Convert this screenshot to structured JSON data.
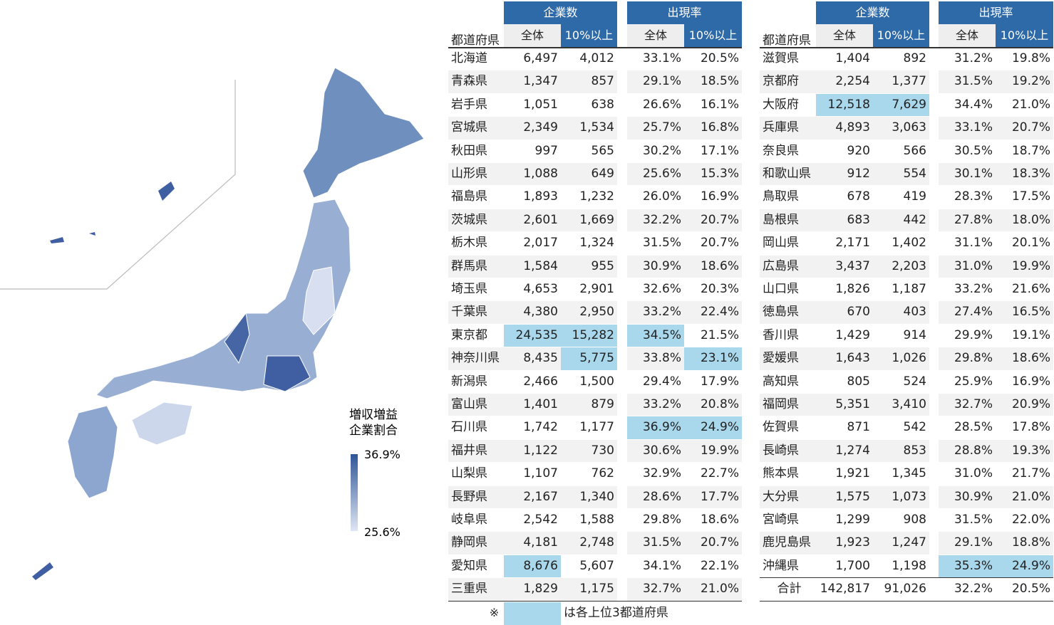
{
  "legend": {
    "title_lines": [
      "増収増益",
      "企業割合"
    ],
    "max": "36.9%",
    "min": "25.6%"
  },
  "tables": [
    {
      "prefecture_header": "都道府県",
      "groups": [
        {
          "label": "企業数",
          "columns": [
            "全体",
            "10%以上"
          ]
        },
        {
          "label": "出現率",
          "columns": [
            "全体",
            "10%以上"
          ]
        }
      ],
      "rows": [
        [
          "北海道",
          "6,497",
          "4,012",
          "33.1%",
          "20.5%"
        ],
        [
          "青森県",
          "1,347",
          "857",
          "29.1%",
          "18.5%"
        ],
        [
          "岩手県",
          "1,051",
          "638",
          "26.6%",
          "16.1%"
        ],
        [
          "宮城県",
          "2,349",
          "1,534",
          "25.7%",
          "16.8%"
        ],
        [
          "秋田県",
          "997",
          "565",
          "30.2%",
          "17.1%"
        ],
        [
          "山形県",
          "1,088",
          "649",
          "25.6%",
          "15.3%"
        ],
        [
          "福島県",
          "1,893",
          "1,232",
          "26.0%",
          "16.9%"
        ],
        [
          "茨城県",
          "2,601",
          "1,669",
          "32.2%",
          "20.7%"
        ],
        [
          "栃木県",
          "2,017",
          "1,324",
          "31.5%",
          "20.7%"
        ],
        [
          "群馬県",
          "1,584",
          "955",
          "30.9%",
          "18.6%"
        ],
        [
          "埼玉県",
          "4,653",
          "2,901",
          "32.6%",
          "20.3%"
        ],
        [
          "千葉県",
          "4,380",
          "2,950",
          "33.2%",
          "22.4%"
        ],
        [
          "東京都",
          {
            "text": "24,535",
            "top3": true
          },
          {
            "text": "15,282",
            "top3": true
          },
          {
            "text": "34.5%",
            "top3": true
          },
          "21.5%"
        ],
        [
          "神奈川県",
          "8,435",
          {
            "text": "5,775",
            "top3": true
          },
          "33.8%",
          {
            "text": "23.1%",
            "top3": true
          }
        ],
        [
          "新潟県",
          "2,466",
          "1,500",
          "29.4%",
          "17.9%"
        ],
        [
          "富山県",
          "1,401",
          "879",
          "33.2%",
          "20.8%"
        ],
        [
          "石川県",
          "1,742",
          "1,177",
          {
            "text": "36.9%",
            "top3": true
          },
          {
            "text": "24.9%",
            "top3": true
          }
        ],
        [
          "福井県",
          "1,122",
          "730",
          "30.6%",
          "19.9%"
        ],
        [
          "山梨県",
          "1,107",
          "762",
          "32.9%",
          "22.7%"
        ],
        [
          "長野県",
          "2,167",
          "1,340",
          "28.6%",
          "17.7%"
        ],
        [
          "岐阜県",
          "2,542",
          "1,588",
          "29.8%",
          "18.6%"
        ],
        [
          "静岡県",
          "4,181",
          "2,748",
          "31.5%",
          "20.7%"
        ],
        [
          "愛知県",
          {
            "text": "8,676",
            "top3": true
          },
          "5,607",
          "34.1%",
          "22.1%"
        ],
        [
          "三重県",
          "1,829",
          "1,175",
          "32.7%",
          "21.0%"
        ]
      ]
    },
    {
      "prefecture_header": "都道府県",
      "groups": [
        {
          "label": "企業数",
          "columns": [
            "全体",
            "10%以上"
          ]
        },
        {
          "label": "出現率",
          "columns": [
            "全体",
            "10%以上"
          ]
        }
      ],
      "rows": [
        [
          "滋賀県",
          "1,404",
          "892",
          "31.2%",
          "19.8%"
        ],
        [
          "京都府",
          "2,254",
          "1,377",
          "31.5%",
          "19.2%"
        ],
        [
          "大阪府",
          {
            "text": "12,518",
            "top3": true
          },
          {
            "text": "7,629",
            "top3": true
          },
          "34.4%",
          "21.0%"
        ],
        [
          "兵庫県",
          "4,893",
          "3,063",
          "33.1%",
          "20.7%"
        ],
        [
          "奈良県",
          "920",
          "566",
          "30.5%",
          "18.7%"
        ],
        [
          "和歌山県",
          "912",
          "554",
          "30.1%",
          "18.3%"
        ],
        [
          "鳥取県",
          "678",
          "419",
          "28.3%",
          "17.5%"
        ],
        [
          "島根県",
          "683",
          "442",
          "27.8%",
          "18.0%"
        ],
        [
          "岡山県",
          "2,171",
          "1,402",
          "31.1%",
          "20.1%"
        ],
        [
          "広島県",
          "3,437",
          "2,203",
          "31.0%",
          "19.9%"
        ],
        [
          "山口県",
          "1,826",
          "1,187",
          "33.2%",
          "21.6%"
        ],
        [
          "徳島県",
          "670",
          "403",
          "27.4%",
          "16.5%"
        ],
        [
          "香川県",
          "1,429",
          "914",
          "29.9%",
          "19.1%"
        ],
        [
          "愛媛県",
          "1,643",
          "1,026",
          "29.8%",
          "18.6%"
        ],
        [
          "高知県",
          "805",
          "524",
          "25.9%",
          "16.9%"
        ],
        [
          "福岡県",
          "5,351",
          "3,410",
          "32.7%",
          "20.9%"
        ],
        [
          "佐賀県",
          "871",
          "542",
          "28.5%",
          "17.8%"
        ],
        [
          "長崎県",
          "1,274",
          "853",
          "28.8%",
          "19.3%"
        ],
        [
          "熊本県",
          "1,921",
          "1,345",
          "31.0%",
          "21.7%"
        ],
        [
          "大分県",
          "1,575",
          "1,073",
          "30.9%",
          "21.0%"
        ],
        [
          "宮崎県",
          "1,299",
          "908",
          "31.5%",
          "22.0%"
        ],
        [
          "鹿児島県",
          "1,923",
          "1,247",
          "29.1%",
          "18.8%"
        ],
        [
          "沖縄県",
          "1,700",
          "1,198",
          {
            "text": "35.3%",
            "top3": true
          },
          {
            "text": "24.9%",
            "top3": true
          }
        ],
        [
          "合計",
          "142,817",
          "91,026",
          "32.2%",
          "20.5%"
        ]
      ]
    }
  ],
  "note": {
    "mark": "※",
    "text": "は各上位3都道府県"
  }
}
